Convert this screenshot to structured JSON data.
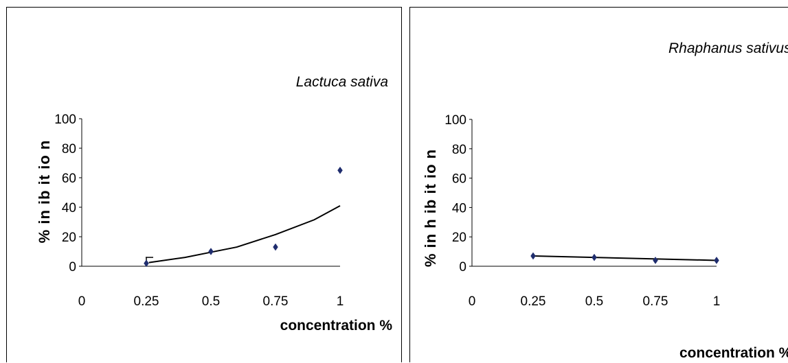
{
  "chart_data": [
    {
      "type": "scatter",
      "title": "Lactuca sativa",
      "xlabel": "concentration %",
      "ylabel": "% in ib it io n",
      "x_ticks": [
        "0",
        "0.25",
        "0.5",
        "0.75",
        "1"
      ],
      "y_ticks": [
        "0",
        "20",
        "40",
        "60",
        "80",
        "100"
      ],
      "xlim": [
        0,
        1
      ],
      "ylim": [
        0,
        100
      ],
      "grid": false,
      "marker_color": "#1f2d6e",
      "series": [
        {
          "points": [
            {
              "x": 0.25,
              "y": 2,
              "err": 4
            },
            {
              "x": 0.5,
              "y": 10,
              "err": 0
            },
            {
              "x": 0.75,
              "y": 13,
              "err": 0
            },
            {
              "x": 1,
              "y": 65,
              "err": 0
            }
          ]
        }
      ],
      "trendline": {
        "type": "exponential",
        "x": [
          0.26,
          0.4,
          0.5,
          0.6,
          0.75,
          0.9,
          1.0
        ],
        "y": [
          2.5,
          6,
          9.5,
          13,
          21.5,
          31.5,
          41
        ]
      }
    },
    {
      "type": "line",
      "title": "Rhaphanus sativus",
      "xlabel": "concentration %",
      "ylabel": "% in h ib it io n",
      "x_ticks": [
        "0",
        "0.25",
        "0.5",
        "0.75",
        "1"
      ],
      "y_ticks": [
        "0",
        "20",
        "40",
        "60",
        "80",
        "100"
      ],
      "xlim": [
        0,
        1
      ],
      "ylim": [
        0,
        100
      ],
      "grid": false,
      "marker_color": "#1f2d6e",
      "series": [
        {
          "points": [
            {
              "x": 0.25,
              "y": 7
            },
            {
              "x": 0.5,
              "y": 6
            },
            {
              "x": 0.75,
              "y": 4
            },
            {
              "x": 1,
              "y": 4
            }
          ]
        }
      ],
      "trendline": {
        "type": "linear",
        "x": [
          0.25,
          1.0
        ],
        "y": [
          7,
          4
        ]
      }
    }
  ]
}
